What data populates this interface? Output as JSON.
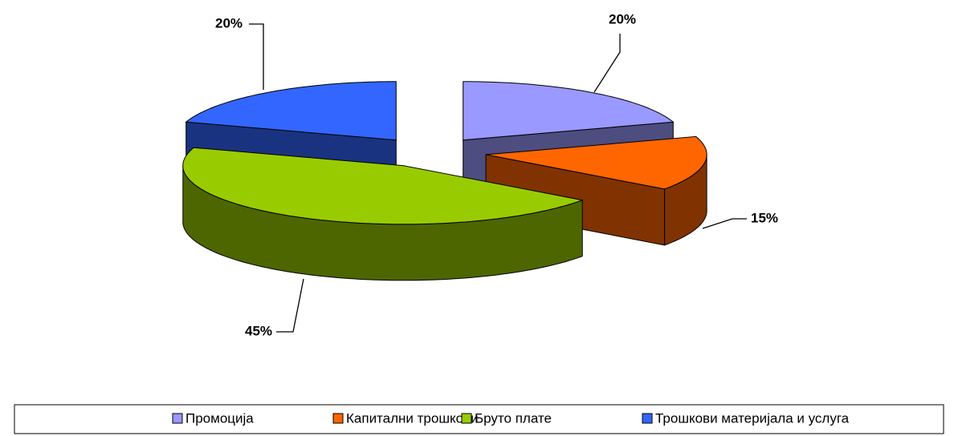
{
  "chart_data": {
    "type": "pie",
    "categories": [
      "Промоција",
      "Капитални трошкови",
      "Бруто плате",
      "Трошкови материјала и услуга"
    ],
    "values": [
      20,
      15,
      45,
      20
    ],
    "value_labels": [
      "20%",
      "15%",
      "45%",
      "20%"
    ],
    "colors": [
      "#9999ff",
      "#ff6600",
      "#99cc00",
      "#3366ff"
    ]
  }
}
